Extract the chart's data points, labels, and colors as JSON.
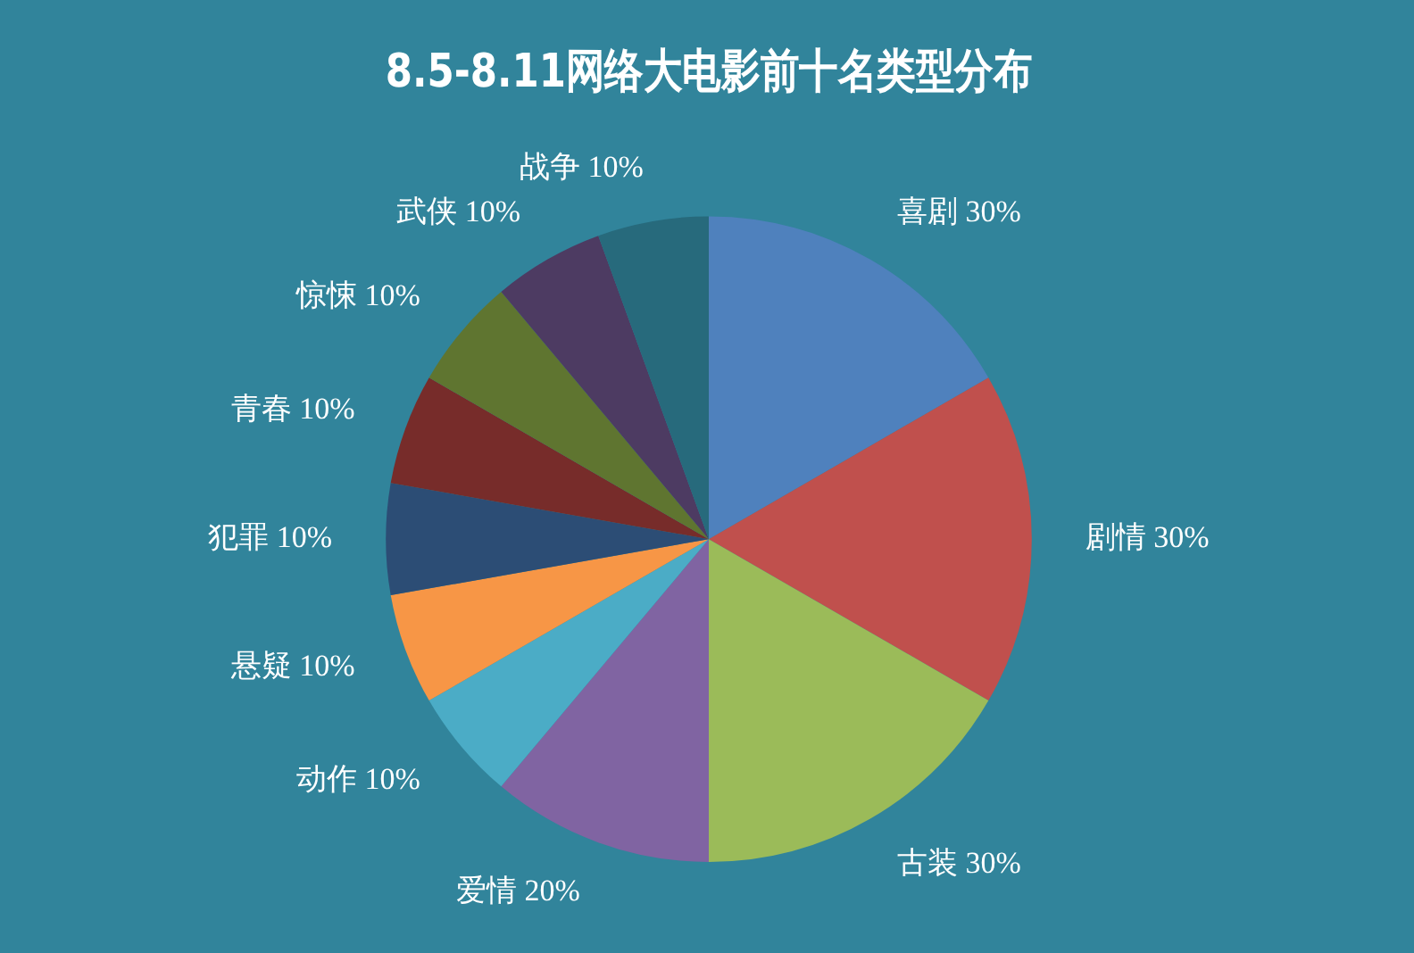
{
  "chart_data": {
    "type": "pie",
    "title": "8.5-8.11网络大电影前十名类型分布",
    "categories": [
      "喜剧",
      "剧情",
      "古装",
      "爱情",
      "动作",
      "悬疑",
      "犯罪",
      "青春",
      "惊悚",
      "武侠",
      "战争"
    ],
    "values": [
      30,
      30,
      30,
      20,
      10,
      10,
      10,
      10,
      10,
      10,
      10
    ],
    "value_labels": [
      "30%",
      "30%",
      "30%",
      "20%",
      "10%",
      "10%",
      "10%",
      "10%",
      "10%",
      "10%",
      "10%"
    ],
    "colors": [
      "#4f81bd",
      "#c0504d",
      "#9bbb59",
      "#8064a2",
      "#4bacc6",
      "#f79646",
      "#2c4d75",
      "#772c2a",
      "#5f7530",
      "#4d3b62",
      "#276a7c"
    ],
    "legend": false
  }
}
